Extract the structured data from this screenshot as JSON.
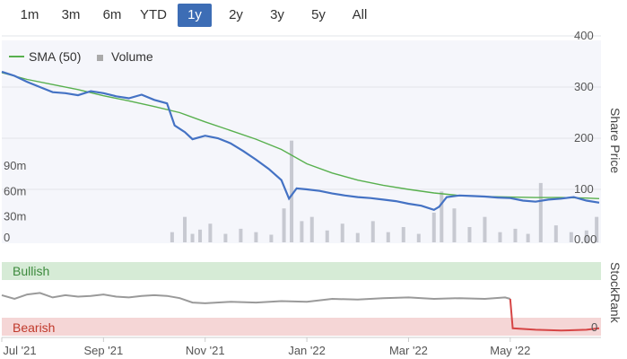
{
  "range_selector": {
    "buttons": [
      {
        "label": "1m",
        "active": false
      },
      {
        "label": "3m",
        "active": false
      },
      {
        "label": "6m",
        "active": false
      },
      {
        "label": "YTD",
        "active": false
      },
      {
        "label": "1y",
        "active": true
      },
      {
        "label": "2y",
        "active": false
      },
      {
        "label": "3y",
        "active": false
      },
      {
        "label": "5y",
        "active": false
      },
      {
        "label": "All",
        "active": false
      }
    ]
  },
  "colors": {
    "price_line": "#4472c4",
    "sma_line": "#58b04e",
    "volume_bar": "#c7c9d1",
    "rank_line": "#9a9a9a",
    "rank_bearish_line": "#d64545",
    "bullish_band": "#d6ebd6",
    "bearish_band": "#f5d6d6",
    "active_button": "#3d6db5"
  },
  "chart_data": [
    {
      "type": "line",
      "legend": {
        "items": [
          {
            "label": "SMA (50)",
            "swatch": "line"
          },
          {
            "label": "Volume",
            "swatch": "square"
          }
        ]
      },
      "y_axis_right": {
        "label": "Share Price",
        "ticks": [
          "400",
          "300",
          "200",
          "100",
          "0.00"
        ],
        "values": [
          400,
          300,
          200,
          100,
          0
        ],
        "range": [
          0,
          400
        ]
      },
      "volume_axis": {
        "ticks": [
          "90m",
          "60m",
          "30m",
          "0"
        ],
        "values": [
          90,
          60,
          30,
          0
        ],
        "range": [
          0,
          180
        ]
      },
      "x_axis": {
        "ticks": [
          "Jul '21",
          "Sep '21",
          "Nov '21",
          "Jan '22",
          "Mar '22",
          "May '22"
        ],
        "tick_positions": [
          0,
          2,
          4,
          6,
          8,
          10
        ],
        "range": [
          0,
          11.75
        ]
      },
      "series": [
        {
          "name": "Price",
          "x": [
            0,
            0.25,
            0.5,
            0.75,
            1,
            1.25,
            1.5,
            1.75,
            2,
            2.25,
            2.5,
            2.75,
            3,
            3.25,
            3.4,
            3.6,
            3.75,
            4,
            4.25,
            4.5,
            4.75,
            5,
            5.25,
            5.5,
            5.65,
            5.8,
            6,
            6.25,
            6.5,
            6.75,
            7,
            7.25,
            7.5,
            7.75,
            8,
            8.25,
            8.5,
            8.6,
            8.75,
            9,
            9.25,
            9.5,
            9.75,
            10,
            10.25,
            10.5,
            10.75,
            11,
            11.25,
            11.5,
            11.75
          ],
          "values": [
            330,
            322,
            310,
            300,
            290,
            288,
            284,
            292,
            288,
            282,
            278,
            285,
            275,
            268,
            225,
            212,
            198,
            205,
            200,
            190,
            175,
            158,
            140,
            118,
            82,
            102,
            100,
            97,
            92,
            88,
            85,
            83,
            80,
            77,
            72,
            68,
            60,
            66,
            85,
            88,
            87,
            86,
            84,
            83,
            78,
            76,
            80,
            82,
            85,
            78,
            74
          ]
        },
        {
          "name": "SMA (50)",
          "x": [
            0,
            0.5,
            1,
            1.5,
            2,
            2.5,
            3,
            3.5,
            4,
            4.5,
            5,
            5.5,
            6,
            6.5,
            7,
            7.5,
            8,
            8.5,
            9,
            9.5,
            10,
            10.5,
            11,
            11.5,
            11.75
          ],
          "values": [
            328,
            315,
            305,
            295,
            283,
            273,
            262,
            250,
            232,
            215,
            198,
            178,
            150,
            132,
            118,
            108,
            100,
            93,
            88,
            86,
            85,
            84,
            84,
            83,
            82
          ]
        },
        {
          "name": "Volume",
          "x": [
            3.35,
            3.6,
            3.75,
            3.9,
            4.1,
            4.4,
            4.7,
            5.0,
            5.3,
            5.55,
            5.7,
            5.9,
            6.1,
            6.4,
            6.7,
            7.0,
            7.3,
            7.6,
            7.9,
            8.2,
            8.5,
            8.65,
            8.9,
            9.2,
            9.5,
            9.8,
            10.1,
            10.35,
            10.6,
            10.9,
            11.2,
            11.5,
            11.7
          ],
          "values": [
            12,
            30,
            10,
            15,
            22,
            10,
            16,
            12,
            9,
            40,
            120,
            25,
            30,
            14,
            22,
            11,
            25,
            12,
            18,
            10,
            35,
            60,
            40,
            18,
            30,
            12,
            16,
            10,
            70,
            20,
            12,
            14,
            30
          ]
        }
      ]
    },
    {
      "type": "line",
      "y_axis_right": {
        "label": "StockRank",
        "ticks": [
          "0"
        ],
        "range": [
          0,
          100
        ]
      },
      "bands": [
        {
          "label": "Bullish",
          "from": 65,
          "to": 100
        },
        {
          "label": "Bearish",
          "from": 0,
          "to": 20
        }
      ],
      "series": [
        {
          "name": "StockRank",
          "x": [
            0,
            0.25,
            0.5,
            0.75,
            1,
            1.25,
            1.5,
            1.75,
            2,
            2.25,
            2.5,
            2.75,
            3,
            3.25,
            3.5,
            3.75,
            4,
            4.5,
            5,
            5.5,
            6,
            6.5,
            7,
            7.5,
            8,
            8.5,
            9,
            9.5,
            9.9,
            10.0,
            10.05,
            10.5,
            11,
            11.5,
            11.75
          ],
          "values": [
            55,
            50,
            56,
            58,
            52,
            55,
            53,
            54,
            56,
            53,
            52,
            54,
            55,
            54,
            51,
            45,
            44,
            46,
            45,
            47,
            46,
            50,
            49,
            51,
            52,
            50,
            51,
            50,
            52,
            50,
            10,
            8,
            7,
            8,
            10
          ]
        }
      ]
    }
  ]
}
